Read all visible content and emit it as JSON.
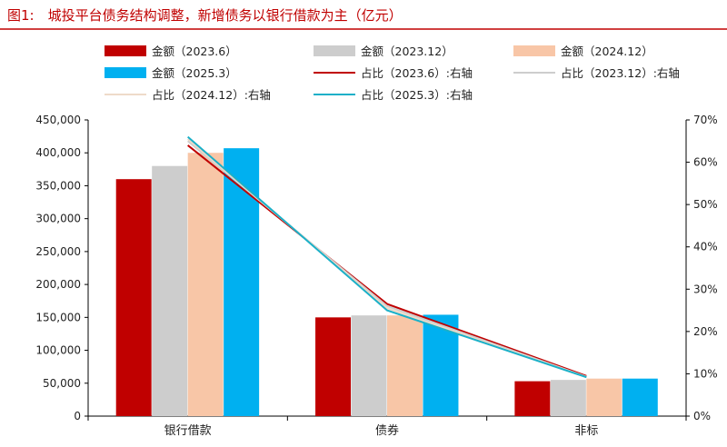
{
  "chart_data": {
    "type": "bar",
    "title": "图1:　城投平台债务结构调整，新增债务以银行借款为主（亿元）",
    "categories": [
      "银行借款",
      "债券",
      "非标"
    ],
    "series": [
      {
        "name": "金额（2023.6）",
        "kind": "bar",
        "axis": "left",
        "color": "#c00000",
        "values": [
          360000,
          150000,
          53000
        ]
      },
      {
        "name": "金额（2023.12）",
        "kind": "bar",
        "axis": "left",
        "color": "#cdcdcd",
        "values": [
          380000,
          153000,
          55000
        ]
      },
      {
        "name": "金额（2024.12）",
        "kind": "bar",
        "axis": "left",
        "color": "#f8c6a7",
        "values": [
          400000,
          153000,
          57000
        ]
      },
      {
        "name": "金额（2025.3）",
        "kind": "bar",
        "axis": "left",
        "color": "#00b0f0",
        "values": [
          407000,
          154000,
          57000
        ]
      },
      {
        "name": "占比（2023.6）:右轴",
        "kind": "line",
        "axis": "right",
        "color": "#c00000",
        "values": [
          64,
          26.5,
          9.5
        ]
      },
      {
        "name": "占比（2023.12）:右轴",
        "kind": "line",
        "axis": "right",
        "color": "#cdcdcd",
        "values": [
          65,
          26,
          9.3
        ]
      },
      {
        "name": "占比（2024.12）:右轴",
        "kind": "line",
        "axis": "right",
        "color": "#eedbc9",
        "values": [
          65.5,
          25.5,
          9.2
        ]
      },
      {
        "name": "占比（2025.3）:右轴",
        "kind": "line",
        "axis": "right",
        "color": "#1ab0c8",
        "values": [
          66,
          25,
          9.2
        ]
      }
    ],
    "y_left": {
      "min": 0,
      "max": 450000,
      "step": 50000,
      "tick_labels": [
        "0",
        "50,000",
        "100,000",
        "150,000",
        "200,000",
        "250,000",
        "300,000",
        "350,000",
        "400,000",
        "450,000"
      ]
    },
    "y_right": {
      "min": 0,
      "max": 70,
      "step": 10,
      "tick_labels": [
        "0%",
        "10%",
        "20%",
        "30%",
        "40%",
        "50%",
        "60%",
        "70%"
      ]
    },
    "grid": false,
    "legend_position": "top"
  }
}
